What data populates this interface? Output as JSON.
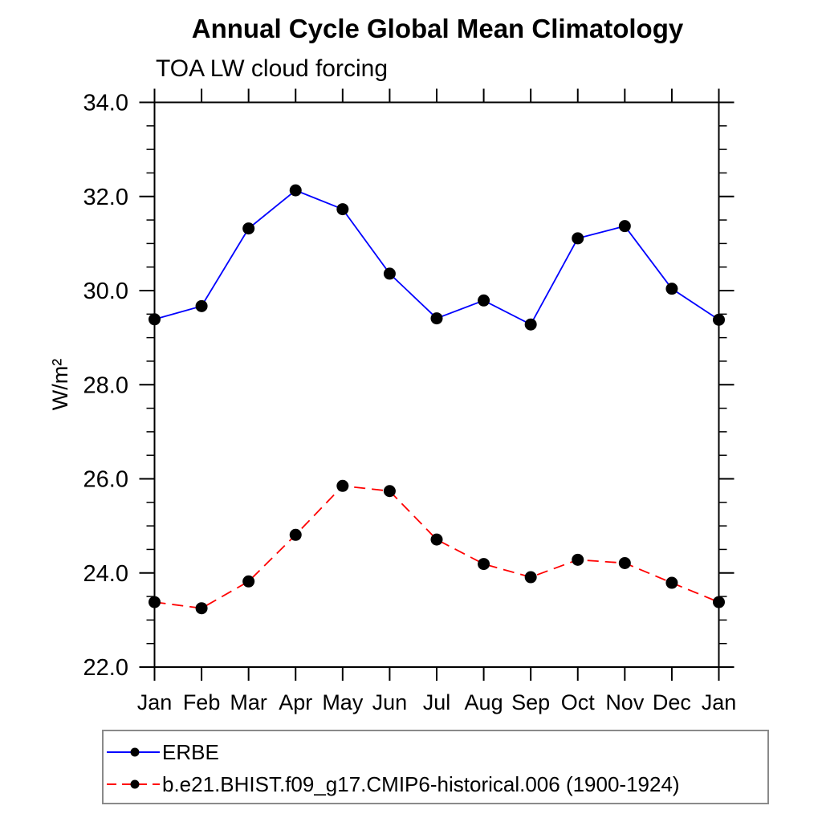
{
  "chart_data": {
    "type": "line",
    "title": "Annual Cycle Global Mean Climatology",
    "subtitle": "TOA LW cloud forcing",
    "ylabel": "W/m²",
    "xlabel": "",
    "categories": [
      "Jan",
      "Feb",
      "Mar",
      "Apr",
      "May",
      "Jun",
      "Jul",
      "Aug",
      "Sep",
      "Oct",
      "Nov",
      "Dec",
      "Jan"
    ],
    "ylim": [
      22.0,
      34.0
    ],
    "ytick_major_interval": 2.0,
    "ytick_minor_interval": 0.5,
    "ytick_labels": [
      "22.0",
      "24.0",
      "26.0",
      "28.0",
      "30.0",
      "32.0",
      "34.0"
    ],
    "grid": false,
    "legend_position": "bottom-left",
    "frame_color": "#000000",
    "marker": "filled-circle",
    "marker_color": "#000000",
    "series": [
      {
        "name": "ERBE",
        "color": "#0000ff",
        "line_style": "solid",
        "values": [
          29.39,
          29.67,
          31.32,
          32.13,
          31.73,
          30.36,
          29.41,
          29.79,
          29.28,
          31.11,
          31.37,
          30.04,
          29.38
        ]
      },
      {
        "name": "b.e21.BHIST.f09_g17.CMIP6-historical.006 (1900-1924)",
        "color": "#ff0000",
        "line_style": "dashed",
        "values": [
          23.38,
          23.25,
          23.82,
          24.81,
          25.85,
          25.74,
          24.71,
          24.19,
          23.91,
          24.28,
          24.21,
          23.79,
          23.38
        ]
      }
    ]
  }
}
